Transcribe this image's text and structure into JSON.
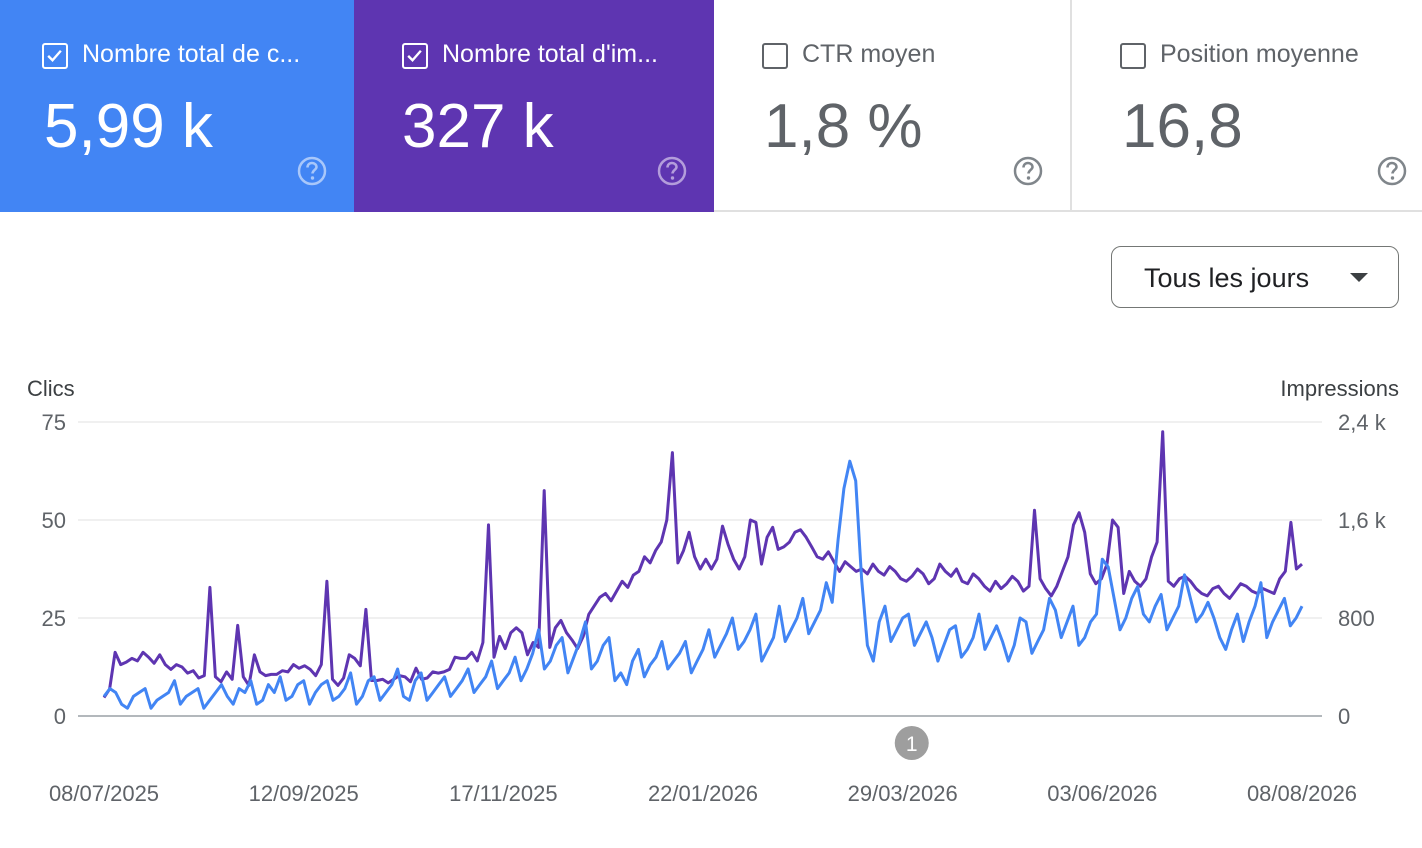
{
  "cards": [
    {
      "label": "Nombre total de c...",
      "value": "5,99 k",
      "checked": true,
      "bg": "#4285f4"
    },
    {
      "label": "Nombre total d'im...",
      "value": "327 k",
      "checked": true,
      "bg": "#5e35b1"
    },
    {
      "label": "CTR moyen",
      "value": "1,8 %",
      "checked": false,
      "bg": "#ffffff"
    },
    {
      "label": "Position moyenne",
      "value": "16,8",
      "checked": false,
      "bg": "#ffffff"
    }
  ],
  "filter": {
    "label": "Tous les jours"
  },
  "chart_data": {
    "type": "line",
    "left_axis": {
      "label": "Clics",
      "ticks": [
        "0",
        "25",
        "50",
        "75"
      ],
      "range": [
        0,
        75
      ]
    },
    "right_axis": {
      "label": "Impressions",
      "ticks": [
        "0",
        "800",
        "1,6 k",
        "2,4 k"
      ],
      "range": [
        0,
        2400
      ]
    },
    "x_ticks": [
      "08/07/2025",
      "12/09/2025",
      "17/11/2025",
      "22/01/2026",
      "29/03/2026",
      "03/06/2026",
      "08/08/2026"
    ],
    "x_start": "2025-07-08",
    "x_end": "2026-08-08",
    "annotation": {
      "label": "1",
      "date": "2026-04-01"
    },
    "grid": true,
    "colors": {
      "clicks": "#4285f4",
      "impressions": "#5e35b1",
      "grid": "#e0e0e0",
      "axis": "#9aa0a6"
    },
    "series": [
      {
        "axis": "left",
        "color": "#4285f4",
        "values": [
          5,
          7,
          6,
          3,
          2,
          5,
          6,
          7,
          2,
          4,
          5,
          6,
          9,
          3,
          5,
          6,
          7,
          2,
          4,
          6,
          8,
          5,
          3,
          7,
          6,
          9,
          3,
          4,
          8,
          6,
          10,
          4,
          5,
          8,
          9,
          3,
          6,
          8,
          9,
          4,
          5,
          7,
          11,
          3,
          5,
          9,
          10,
          4,
          6,
          8,
          12,
          5,
          4,
          9,
          11,
          4,
          6,
          8,
          10,
          5,
          7,
          9,
          12,
          6,
          8,
          10,
          14,
          7,
          9,
          11,
          15,
          9,
          12,
          16,
          22,
          12,
          14,
          18,
          20,
          11,
          15,
          19,
          24,
          12,
          14,
          18,
          20,
          9,
          11,
          8,
          14,
          17,
          10,
          13,
          15,
          19,
          12,
          14,
          16,
          19,
          11,
          14,
          17,
          22,
          15,
          18,
          21,
          25,
          17,
          19,
          22,
          26,
          14,
          17,
          20,
          28,
          19,
          22,
          25,
          30,
          21,
          24,
          27,
          34,
          29,
          45,
          58,
          65,
          60,
          35,
          18,
          14,
          24,
          28,
          19,
          22,
          25,
          26,
          18,
          21,
          24,
          20,
          14,
          18,
          22,
          23,
          15,
          17,
          20,
          26,
          17,
          20,
          23,
          19,
          14,
          18,
          25,
          24,
          16,
          19,
          22,
          30,
          27,
          20,
          24,
          28,
          18,
          20,
          24,
          26,
          40,
          38,
          30,
          22,
          25,
          30,
          33,
          26,
          24,
          28,
          31,
          22,
          25,
          28,
          36,
          30,
          24,
          26,
          29,
          25,
          20,
          17,
          22,
          26,
          19,
          24,
          28,
          34,
          20,
          24,
          27,
          30,
          23,
          25,
          28
        ]
      },
      {
        "axis": "right",
        "color": "#5e35b1",
        "values": [
          150,
          220,
          520,
          420,
          440,
          470,
          450,
          520,
          480,
          430,
          500,
          420,
          380,
          420,
          400,
          350,
          370,
          310,
          330,
          1050,
          320,
          280,
          360,
          300,
          740,
          320,
          250,
          500,
          360,
          330,
          340,
          340,
          370,
          360,
          420,
          390,
          410,
          380,
          330,
          420,
          1100,
          300,
          250,
          310,
          500,
          470,
          410,
          870,
          290,
          290,
          300,
          270,
          300,
          330,
          320,
          280,
          390,
          300,
          310,
          360,
          350,
          360,
          380,
          480,
          470,
          470,
          520,
          450,
          600,
          1560,
          480,
          650,
          550,
          680,
          720,
          680,
          500,
          600,
          560,
          1840,
          560,
          720,
          780,
          680,
          620,
          550,
          650,
          830,
          900,
          970,
          1000,
          940,
          1020,
          1100,
          1050,
          1150,
          1180,
          1300,
          1250,
          1350,
          1420,
          1600,
          2150,
          1250,
          1350,
          1500,
          1300,
          1200,
          1280,
          1200,
          1280,
          1550,
          1400,
          1280,
          1200,
          1300,
          1600,
          1580,
          1240,
          1460,
          1540,
          1360,
          1380,
          1420,
          1500,
          1520,
          1460,
          1380,
          1300,
          1280,
          1340,
          1260,
          1180,
          1260,
          1220,
          1180,
          1200,
          1160,
          1240,
          1180,
          1150,
          1220,
          1180,
          1120,
          1100,
          1140,
          1200,
          1160,
          1080,
          1120,
          1240,
          1180,
          1140,
          1200,
          1100,
          1080,
          1160,
          1120,
          1060,
          1020,
          1100,
          1040,
          1080,
          1140,
          1100,
          1020,
          1060,
          1680,
          1120,
          1040,
          980,
          1060,
          1180,
          1300,
          1560,
          1660,
          1500,
          1160,
          1080,
          1120,
          1240,
          1600,
          1540,
          1000,
          1180,
          1100,
          1060,
          1120,
          1300,
          1420,
          2320,
          1100,
          1060,
          1120,
          1140,
          1100,
          1040,
          1000,
          980,
          1040,
          1060,
          1000,
          960,
          1020,
          1080,
          1060,
          1020,
          1000,
          1040,
          1020,
          1000,
          1120,
          1180,
          1580,
          1200,
          1240
        ]
      }
    ]
  }
}
